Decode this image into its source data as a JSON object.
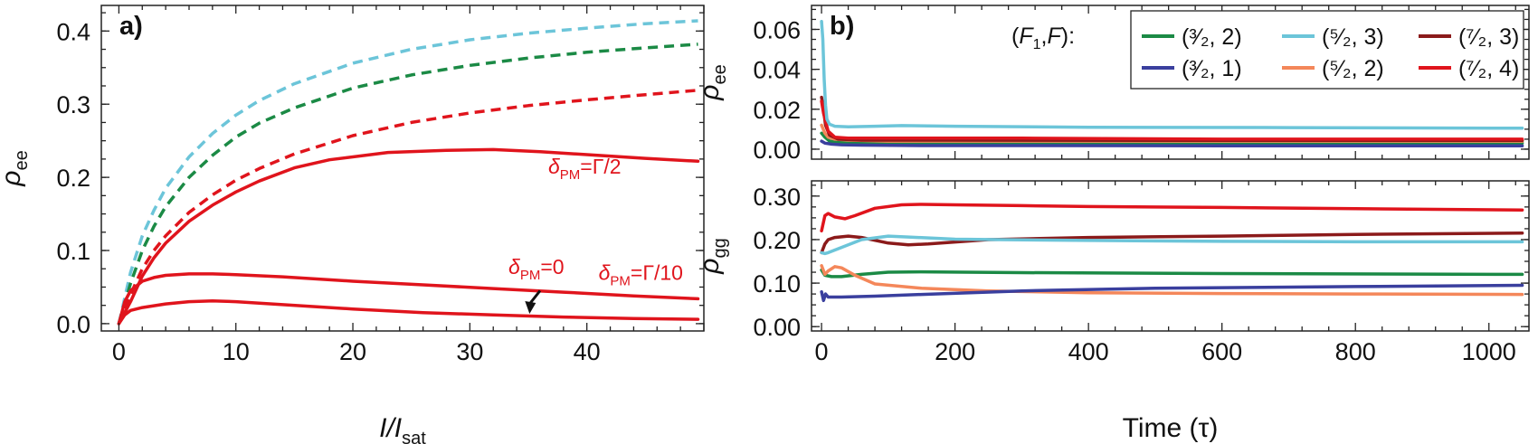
{
  "chart_data": [
    {
      "type": "line",
      "panel_label": "a)",
      "xlabel": "I/I",
      "xlabel_sub": "sat",
      "ylabel": "ρ",
      "ylabel_sub": "ee",
      "xlim": [
        -1.5,
        50
      ],
      "ylim": [
        -0.01,
        0.435
      ],
      "xticks": [
        0,
        10,
        20,
        30,
        40
      ],
      "yticks": [
        0.0,
        0.1,
        0.2,
        0.3,
        0.4
      ],
      "ytick_labels": [
        "0.0",
        "0.1",
        "0.2",
        "0.3",
        "0.4"
      ],
      "annotations": [
        {
          "sym": "δ",
          "sub": "PM",
          "tail": "=Γ/2"
        },
        {
          "sym": "δ",
          "sub": "PM",
          "tail": "=0"
        },
        {
          "sym": "δ",
          "sub": "PM",
          "tail": "=Γ/10"
        }
      ],
      "series": [
        {
          "name": "cyan dashed",
          "color": "#6cc5d9",
          "dashed": true,
          "x": [
            0,
            1,
            2,
            3,
            4,
            6,
            8,
            10,
            12,
            15,
            20,
            25,
            30,
            35,
            40,
            45,
            49.5
          ],
          "y": [
            0,
            0.07,
            0.12,
            0.155,
            0.185,
            0.228,
            0.26,
            0.285,
            0.305,
            0.328,
            0.356,
            0.375,
            0.388,
            0.397,
            0.404,
            0.41,
            0.414
          ]
        },
        {
          "name": "green dashed",
          "color": "#1b8a45",
          "dashed": true,
          "x": [
            0,
            1,
            2,
            3,
            4,
            6,
            8,
            10,
            12,
            15,
            20,
            25,
            30,
            35,
            40,
            45,
            49.5
          ],
          "y": [
            0,
            0.055,
            0.1,
            0.133,
            0.16,
            0.2,
            0.23,
            0.255,
            0.274,
            0.295,
            0.322,
            0.34,
            0.353,
            0.363,
            0.371,
            0.377,
            0.382
          ]
        },
        {
          "name": "red dashed",
          "color": "#e0141c",
          "dashed": true,
          "x": [
            0,
            1,
            2,
            3,
            4,
            6,
            8,
            10,
            12,
            15,
            20,
            25,
            30,
            35,
            40,
            45,
            49.5
          ],
          "y": [
            0,
            0.04,
            0.075,
            0.1,
            0.12,
            0.152,
            0.176,
            0.196,
            0.212,
            0.232,
            0.257,
            0.275,
            0.288,
            0.298,
            0.306,
            0.313,
            0.319
          ]
        },
        {
          "name": "δPM=Γ/2",
          "color": "#e0141c",
          "dashed": false,
          "x": [
            0,
            1,
            2,
            3,
            4,
            6,
            8,
            10,
            12,
            15,
            18,
            23,
            28,
            32,
            36,
            40,
            45,
            49.5
          ],
          "y": [
            0,
            0.03,
            0.065,
            0.09,
            0.11,
            0.14,
            0.162,
            0.18,
            0.195,
            0.213,
            0.224,
            0.234,
            0.237,
            0.238,
            0.235,
            0.231,
            0.226,
            0.222
          ]
        },
        {
          "name": "δPM=Γ/10",
          "color": "#e0141c",
          "dashed": false,
          "x": [
            0,
            0.5,
            1,
            2,
            3,
            4,
            6,
            8,
            10,
            14,
            20,
            26,
            32,
            38,
            44,
            49.5
          ],
          "y": [
            0,
            0.03,
            0.045,
            0.058,
            0.063,
            0.066,
            0.068,
            0.068,
            0.067,
            0.064,
            0.058,
            0.053,
            0.048,
            0.043,
            0.038,
            0.034
          ]
        },
        {
          "name": "δPM=0",
          "color": "#e0141c",
          "dashed": false,
          "x": [
            0,
            0.5,
            1,
            2,
            4,
            6,
            8,
            10,
            14,
            20,
            26,
            32,
            38,
            44,
            49.5
          ],
          "y": [
            0,
            0.012,
            0.018,
            0.022,
            0.027,
            0.03,
            0.031,
            0.03,
            0.026,
            0.02,
            0.015,
            0.012,
            0.009,
            0.007,
            0.006
          ]
        }
      ]
    },
    {
      "type": "line",
      "panel_label": "b)",
      "xlabel": "",
      "ylabel": "ρ",
      "ylabel_sub": "ee",
      "xlim": [
        -15,
        1060
      ],
      "ylim": [
        -0.005,
        0.072
      ],
      "yticks": [
        0.0,
        0.02,
        0.04,
        0.06
      ],
      "ytick_labels": [
        "0.00",
        "0.02",
        "0.04",
        "0.06"
      ],
      "legend": {
        "title_parts": [
          "(",
          "F",
          "1",
          ",",
          "F",
          "):"
        ],
        "entries": [
          {
            "label": "(³⁄₂, 2)",
            "color": "#1b8a45"
          },
          {
            "label": "(⁵⁄₂, 3)",
            "color": "#6cc5d9"
          },
          {
            "label": "(⁷⁄₂, 3)",
            "color": "#8b1a1a"
          },
          {
            "label": "(³⁄₂, 1)",
            "color": "#3a3f9e"
          },
          {
            "label": "(⁵⁄₂, 2)",
            "color": "#f4875a"
          },
          {
            "label": "(⁷⁄₂, 4)",
            "color": "#e0141c"
          }
        ]
      },
      "series": [
        {
          "name": "(3/2,2)",
          "color": "#1b8a45",
          "x": [
            0,
            5,
            12,
            25,
            50,
            150,
            300,
            600,
            1050
          ],
          "y": [
            0.008,
            0.006,
            0.004,
            0.0035,
            0.0032,
            0.003,
            0.003,
            0.003,
            0.003
          ]
        },
        {
          "name": "(3/2,1)",
          "color": "#3a3f9e",
          "x": [
            0,
            5,
            15,
            30,
            60,
            150,
            300,
            600,
            1050
          ],
          "y": [
            0.004,
            0.003,
            0.0025,
            0.0022,
            0.002,
            0.0018,
            0.0018,
            0.0017,
            0.0017
          ]
        },
        {
          "name": "(5/2,2)",
          "color": "#f4875a",
          "x": [
            0,
            5,
            10,
            20,
            40,
            100,
            300,
            600,
            1050
          ],
          "y": [
            0.012,
            0.008,
            0.006,
            0.005,
            0.0045,
            0.004,
            0.004,
            0.004,
            0.004
          ]
        },
        {
          "name": "(7/2,3)",
          "color": "#8b1a1a",
          "x": [
            0,
            3,
            6,
            12,
            25,
            60,
            200,
            500,
            1050
          ],
          "y": [
            0.026,
            0.02,
            0.012,
            0.007,
            0.005,
            0.0045,
            0.0045,
            0.0044,
            0.0044
          ]
        },
        {
          "name": "(7/2,4)",
          "color": "#e0141c",
          "x": [
            0,
            3,
            6,
            10,
            20,
            40,
            100,
            300,
            600,
            1050
          ],
          "y": [
            0.024,
            0.018,
            0.014,
            0.009,
            0.006,
            0.0055,
            0.0055,
            0.0055,
            0.005,
            0.005
          ]
        },
        {
          "name": "(5/2,3)",
          "color": "#6cc5d9",
          "x": [
            0,
            2,
            4,
            6,
            8,
            12,
            20,
            40,
            80,
            120,
            200,
            400,
            700,
            1050
          ],
          "y": [
            0.064,
            0.055,
            0.035,
            0.022,
            0.015,
            0.0125,
            0.0115,
            0.0112,
            0.0115,
            0.0118,
            0.0115,
            0.011,
            0.0108,
            0.0105
          ]
        }
      ]
    },
    {
      "type": "line",
      "panel_label": "",
      "xlabel": "Time (τ)",
      "ylabel": "ρ",
      "ylabel_sub": "gg",
      "xlim": [
        -15,
        1060
      ],
      "ylim": [
        -0.01,
        0.335
      ],
      "xticks": [
        0,
        200,
        400,
        600,
        800,
        1000
      ],
      "yticks": [
        0.0,
        0.1,
        0.2,
        0.3
      ],
      "ytick_labels": [
        "0.00",
        "0.10",
        "0.20",
        "0.30"
      ],
      "series": [
        {
          "name": "(7/2,4)",
          "color": "#e0141c",
          "x": [
            0,
            5,
            10,
            20,
            35,
            50,
            80,
            120,
            150,
            200,
            300,
            400,
            600,
            800,
            1050
          ],
          "y": [
            0.22,
            0.255,
            0.26,
            0.252,
            0.248,
            0.255,
            0.272,
            0.28,
            0.281,
            0.28,
            0.278,
            0.276,
            0.274,
            0.271,
            0.268
          ]
        },
        {
          "name": "(7/2,3)",
          "color": "#8b1a1a",
          "x": [
            0,
            5,
            10,
            20,
            40,
            60,
            100,
            130,
            160,
            250,
            400,
            600,
            800,
            1050
          ],
          "y": [
            0.17,
            0.19,
            0.2,
            0.205,
            0.208,
            0.205,
            0.192,
            0.188,
            0.19,
            0.2,
            0.205,
            0.208,
            0.212,
            0.215
          ]
        },
        {
          "name": "(5/2,3)",
          "color": "#6cc5d9",
          "x": [
            0,
            5,
            10,
            30,
            60,
            100,
            130,
            200,
            400,
            600,
            800,
            1050
          ],
          "y": [
            0.17,
            0.168,
            0.17,
            0.182,
            0.2,
            0.208,
            0.206,
            0.201,
            0.198,
            0.196,
            0.195,
            0.195
          ]
        },
        {
          "name": "(3/2,2)",
          "color": "#1b8a45",
          "x": [
            0,
            5,
            15,
            30,
            60,
            100,
            150,
            300,
            600,
            1050
          ],
          "y": [
            0.13,
            0.118,
            0.115,
            0.115,
            0.12,
            0.125,
            0.126,
            0.124,
            0.122,
            0.12
          ]
        },
        {
          "name": "(5/2,2)",
          "color": "#f4875a",
          "x": [
            0,
            5,
            10,
            20,
            30,
            50,
            80,
            150,
            250,
            400,
            600,
            800,
            1050
          ],
          "y": [
            0.14,
            0.12,
            0.128,
            0.138,
            0.135,
            0.118,
            0.098,
            0.088,
            0.082,
            0.078,
            0.076,
            0.075,
            0.074
          ]
        },
        {
          "name": "(3/2,1)",
          "color": "#3a3f9e",
          "x": [
            0,
            3,
            6,
            10,
            30,
            80,
            150,
            300,
            500,
            800,
            1050
          ],
          "y": [
            0.08,
            0.06,
            0.075,
            0.068,
            0.068,
            0.07,
            0.074,
            0.082,
            0.088,
            0.092,
            0.095
          ]
        }
      ]
    }
  ]
}
